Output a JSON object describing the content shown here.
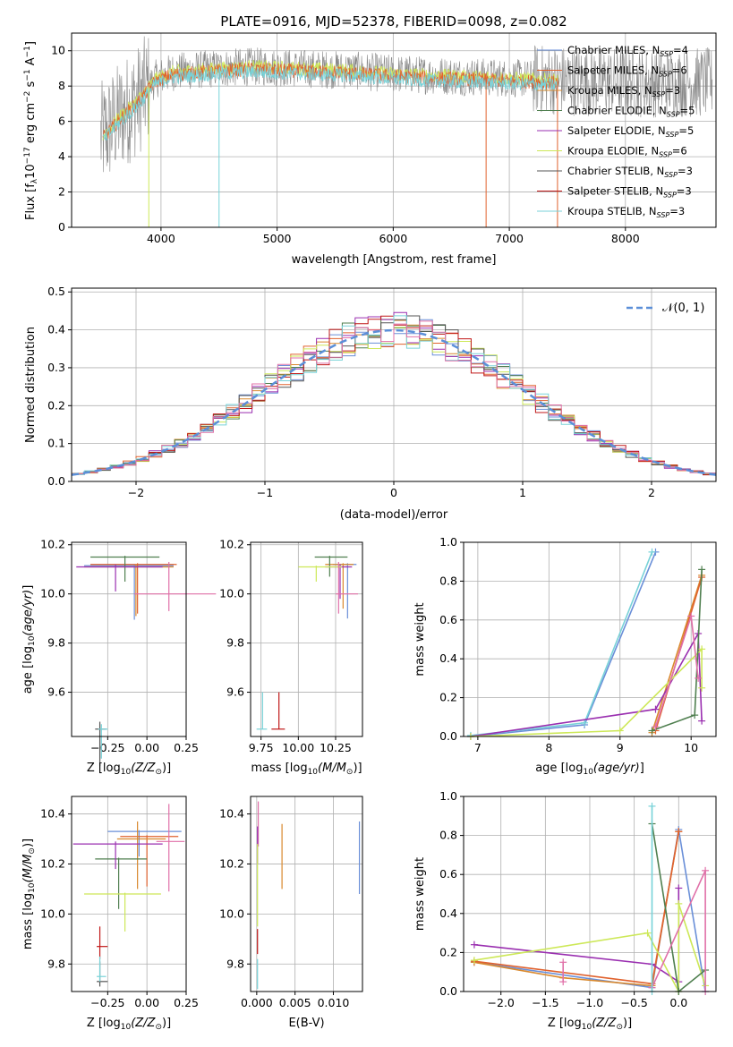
{
  "colors": {
    "Chabrier MILES": "#6a8fd8",
    "Salpeter MILES": "#e0622e",
    "Kroupa MILES": "#d9892e",
    "Chabrier ELODIE": "#4f7f4f",
    "Salpeter ELODIE": "#9a2fb0",
    "Kroupa ELODIE": "#cde858",
    "Chabrier STELIB": "#555555",
    "Salpeter STELIB": "#c01818",
    "Kroupa STELIB": "#78d2d8",
    "pink": "#e070a8",
    "spectrum_gray": "#888888",
    "normal_line": "#5b8fd8"
  },
  "chart_data": [
    {
      "type": "line",
      "title": "PLATE=0916, MJD=52378, FIBERID=0098, z=0.082",
      "xlabel": "wavelength [Angstrom, rest frame]",
      "ylabel": "Flux [f",
      "xlim": [
        3230,
        8780
      ],
      "ylim": [
        0,
        11
      ],
      "xticks": [
        "4000",
        "5000",
        "6000",
        "7000",
        "8000"
      ],
      "yticks": [
        "0",
        "2",
        "4",
        "6",
        "8",
        "10"
      ],
      "legend_position": "right",
      "series": [
        {
          "name": "Chabrier MILES, N",
          "nssp": "=4"
        },
        {
          "name": "Salpeter MILES, N",
          "nssp": "=6"
        },
        {
          "name": "Kroupa MILES, N",
          "nssp": "=3"
        },
        {
          "name": "Chabrier ELODIE, N",
          "nssp": "=5"
        },
        {
          "name": "Salpeter ELODIE, N",
          "nssp": "=5"
        },
        {
          "name": "Kroupa ELODIE, N",
          "nssp": "=6"
        },
        {
          "name": "Chabrier STELIB, N",
          "nssp": "=3"
        },
        {
          "name": "Salpeter STELIB, N",
          "nssp": "=3"
        },
        {
          "name": "Kroupa STELIB, N",
          "nssp": "=3"
        }
      ],
      "continuum": {
        "x": [
          3500,
          3650,
          3800,
          3950,
          4100,
          4300,
          4500,
          4800,
          5200,
          5600,
          6000,
          6400,
          6800,
          7200,
          7600,
          8000,
          8400,
          8750
        ],
        "y": [
          5.2,
          6.3,
          7.2,
          8.4,
          8.8,
          8.9,
          9.0,
          9.1,
          9.0,
          8.9,
          8.7,
          8.6,
          8.5,
          8.4,
          8.3,
          8.2,
          8.2,
          8.2
        ]
      }
    },
    {
      "type": "step",
      "xlabel": "(data-model)/error",
      "ylabel": "Normed distribution",
      "xlim": [
        -2.5,
        2.5
      ],
      "ylim": [
        0,
        0.51
      ],
      "xticks": [
        "−2",
        "−1",
        "0",
        "1",
        "2"
      ],
      "yticks": [
        "0.0",
        "0.1",
        "0.2",
        "0.3",
        "0.4",
        "0.5"
      ],
      "legend_label": "𝒩(0, 1)",
      "legend_position": "top-right",
      "bin_width": 0.1
    },
    {
      "type": "errorbar",
      "xlabel": "Z [log",
      "ylabel": "age  [log",
      "xlim": [
        -0.48,
        0.25
      ],
      "ylim": [
        9.42,
        10.21
      ],
      "xticks": [
        "−0.25",
        "0.00",
        "0.25"
      ],
      "yticks": [
        "9.6",
        "9.8",
        "10.0",
        "10.2"
      ]
    },
    {
      "type": "errorbar",
      "xlabel": "mass [log",
      "ylabel": "",
      "xlim": [
        9.68,
        10.43
      ],
      "ylim": [
        9.42,
        10.21
      ],
      "xticks": [
        "9.75",
        "10.00",
        "10.25"
      ],
      "yticks": [
        "9.6",
        "9.8",
        "10.0",
        "10.2"
      ]
    },
    {
      "type": "line",
      "xlabel": "age  [log",
      "ylabel": "mass weight",
      "xlim": [
        6.8,
        10.35
      ],
      "ylim": [
        0,
        1
      ],
      "xticks": [
        "7",
        "8",
        "9",
        "10"
      ],
      "yticks": [
        "0.0",
        "0.2",
        "0.4",
        "0.6",
        "0.8",
        "1.0"
      ]
    },
    {
      "type": "errorbar",
      "xlabel": "Z [log",
      "ylabel": "mass [log",
      "xlim": [
        -0.48,
        0.25
      ],
      "ylim": [
        9.69,
        10.47
      ],
      "xticks": [
        "−0.25",
        "0.00",
        "0.25"
      ],
      "yticks": [
        "9.8",
        "10.0",
        "10.2",
        "10.4"
      ]
    },
    {
      "type": "errorbar",
      "xlabel": "E(B-V)",
      "ylabel": "",
      "xlim": [
        -0.0008,
        0.0138
      ],
      "ylim": [
        9.69,
        10.47
      ],
      "xticks": [
        "0.000",
        "0.005",
        "0.010"
      ],
      "yticks": [
        "9.8",
        "10.0",
        "10.2",
        "10.4"
      ]
    },
    {
      "type": "line",
      "xlabel": "Z [log",
      "ylabel": "mass weight",
      "xlim": [
        -2.42,
        0.42
      ],
      "ylim": [
        0,
        1
      ],
      "xticks": [
        "−2.0",
        "−1.5",
        "−1.0",
        "−0.5",
        "0.0"
      ],
      "yticks": [
        "0.0",
        "0.2",
        "0.4",
        "0.6",
        "0.8",
        "1.0"
      ]
    }
  ]
}
